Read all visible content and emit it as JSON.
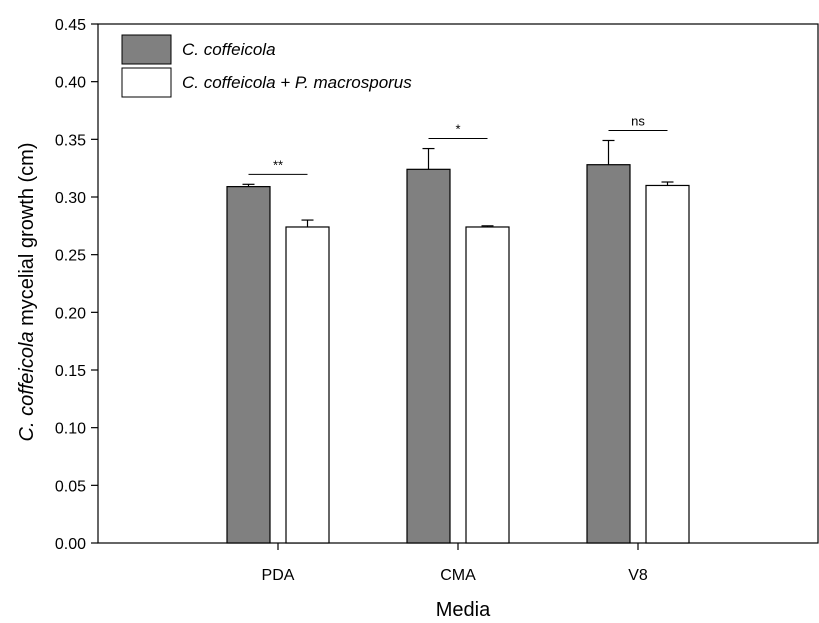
{
  "chart_data": {
    "type": "bar",
    "categories": [
      "PDA",
      "CMA",
      "V8"
    ],
    "series": [
      {
        "name": "C. coffeicola",
        "color": "#808080",
        "values": [
          0.309,
          0.324,
          0.328
        ],
        "errors": [
          0.002,
          0.018,
          0.021
        ]
      },
      {
        "name": "C. coffeicola + P. macrosporus",
        "color": "#ffffff",
        "values": [
          0.274,
          0.274,
          0.31
        ],
        "errors": [
          0.006,
          0.001,
          0.003
        ]
      }
    ],
    "significance": [
      "**",
      "*",
      "ns"
    ],
    "xlabel": "Media",
    "ylabel": {
      "italic_part": "C. coffeicola",
      "rest": " mycelial growth (cm)"
    },
    "ylim": [
      0.0,
      0.45
    ],
    "yticks": [
      "0.00",
      "0.05",
      "0.10",
      "0.15",
      "0.20",
      "0.25",
      "0.30",
      "0.35",
      "0.40",
      "0.45"
    ],
    "grid": false,
    "legend_position": "top-left"
  }
}
